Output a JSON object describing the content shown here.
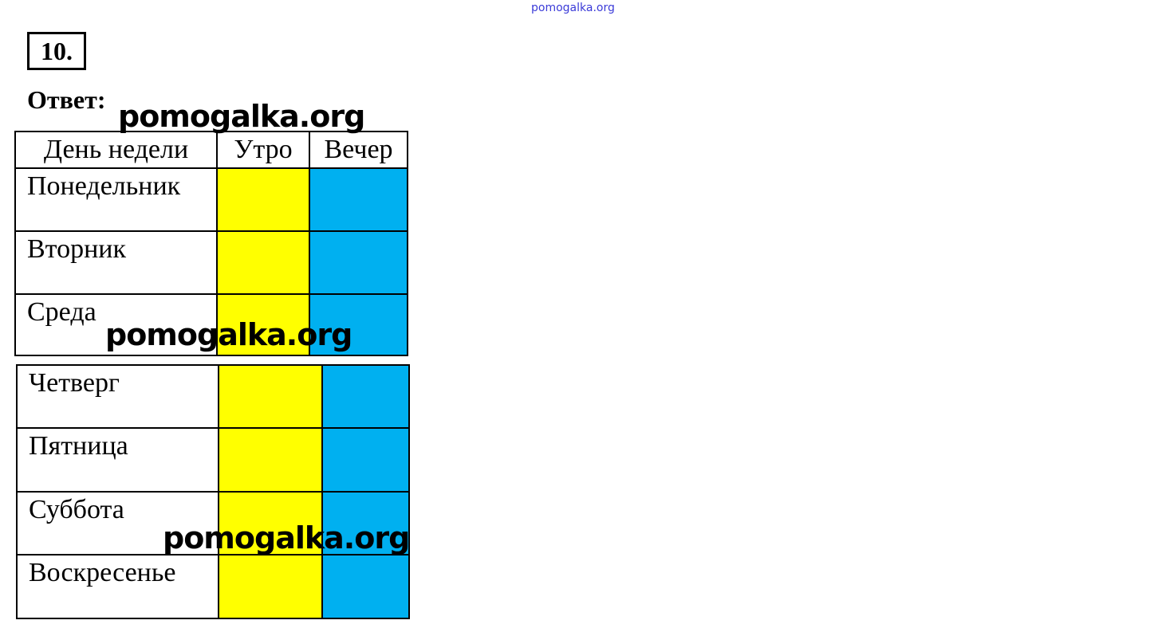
{
  "watermark_small": "pomogalka.org",
  "watermark": "pomogalka.org",
  "task_number": "10.",
  "answer_label": "Ответ:",
  "table": {
    "headers": [
      "День недели",
      "Утро",
      "Вечер"
    ],
    "rows": [
      "Понедельник",
      "Вторник",
      "Среда",
      "Четверг",
      "Пятница",
      "Суббота",
      "Воскресенье"
    ],
    "morning_color": "#ffff00",
    "evening_color": "#00b0f0"
  }
}
